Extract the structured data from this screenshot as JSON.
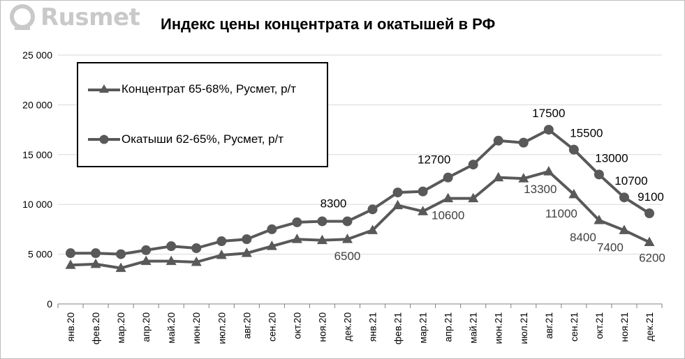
{
  "header": {
    "logo_text": "Rusmet",
    "title": "Индекс цены концентрата и окатышей в РФ"
  },
  "colors": {
    "series": "#595959",
    "grid": "#d9d9d9",
    "axis": "#808080",
    "logo": "#c9c9c9"
  },
  "chart_data": {
    "type": "line",
    "title": "Индекс цены концентрата и окатышей в РФ",
    "xlabel": "",
    "ylabel": "",
    "ylim": [
      0,
      25000
    ],
    "yticks": [
      0,
      5000,
      10000,
      15000,
      20000,
      25000
    ],
    "ytick_labels": [
      "0",
      "5 000",
      "10 000",
      "15 000",
      "20 000",
      "25 000"
    ],
    "grid": "horizontal",
    "legend_position": "top-left",
    "categories": [
      "янв.20",
      "фев.20",
      "мар.20",
      "апр.20",
      "май.20",
      "июн.20",
      "июл.20",
      "авг.20",
      "сен.20",
      "окт.20",
      "ноя.20",
      "дек.20",
      "янв.21",
      "фев.21",
      "мар.21",
      "апр.21",
      "май.21",
      "июн.21",
      "июл.21",
      "авг.21",
      "сен.21",
      "окт.21",
      "ноя.21",
      "дек.21"
    ],
    "series": [
      {
        "name": "Концентрат 65-68%, Русмет, р/т",
        "marker": "triangle",
        "values": [
          3900,
          4000,
          3600,
          4300,
          4300,
          4200,
          4900,
          5100,
          5800,
          6500,
          6400,
          6500,
          7400,
          9900,
          9300,
          10600,
          10600,
          12700,
          12600,
          13300,
          11000,
          8400,
          7400,
          6200
        ],
        "labels": {
          "11": "6500",
          "15": "10600",
          "19": "13300",
          "20": "11000",
          "21": "8400",
          "22": "7400",
          "23": "6200"
        }
      },
      {
        "name": "Окатыши 62-65%, Русмет, р/т",
        "marker": "circle",
        "values": [
          5100,
          5100,
          5000,
          5400,
          5800,
          5600,
          6300,
          6500,
          7500,
          8200,
          8300,
          8300,
          9500,
          11200,
          11300,
          12700,
          14000,
          16400,
          16200,
          17500,
          15500,
          13000,
          10700,
          9100
        ],
        "labels": {
          "11": "8300",
          "15": "12700",
          "19": "17500",
          "20": "15500",
          "21": "13000",
          "22": "10700",
          "23": "9100"
        }
      }
    ]
  }
}
